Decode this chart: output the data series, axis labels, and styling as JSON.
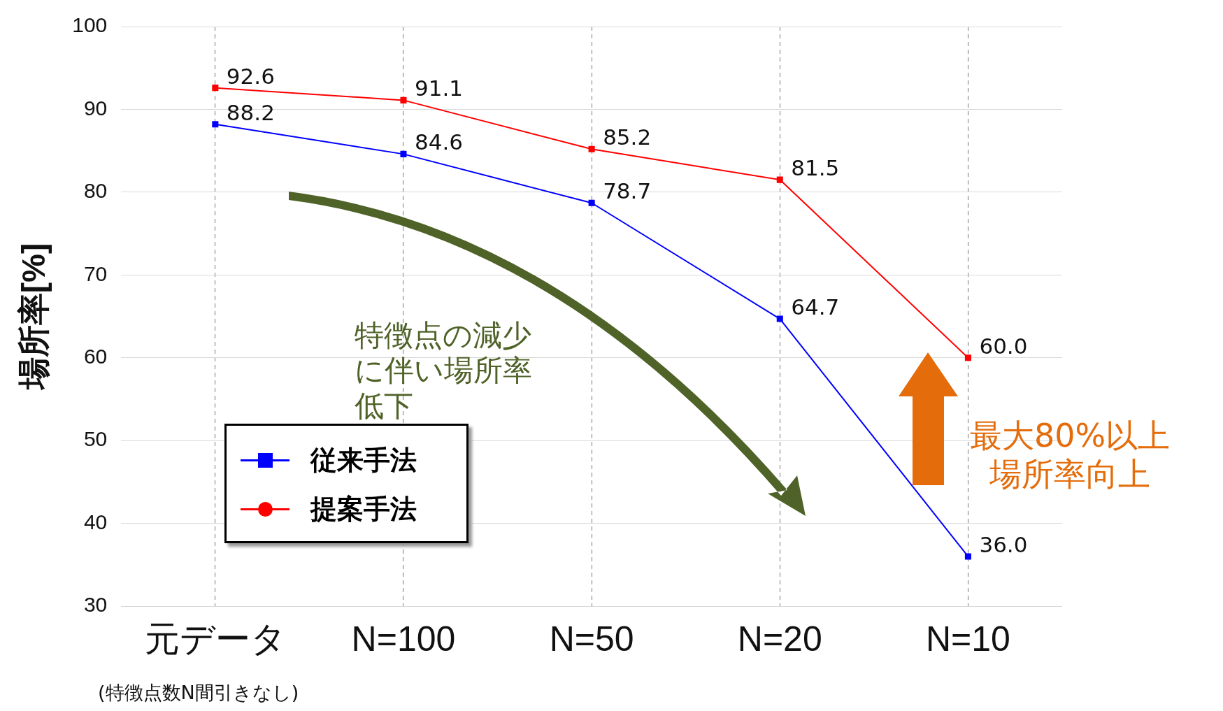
{
  "chart_data": {
    "type": "line",
    "ylabel": "場所率[%]",
    "categories": [
      "元データ",
      "N=100",
      "N=50",
      "N=20",
      "N=10"
    ],
    "series": [
      {
        "name": "従来手法",
        "color": "#0000ff",
        "values": [
          88.2,
          84.6,
          78.7,
          64.7,
          36.0
        ],
        "value_labels": [
          "88.2",
          "84.6",
          "78.7",
          "64.7",
          "36.0"
        ]
      },
      {
        "name": "提案手法",
        "color": "#ff0000",
        "values": [
          92.6,
          91.1,
          85.2,
          81.5,
          60.0
        ],
        "value_labels": [
          "92.6",
          "91.1",
          "85.2",
          "81.5",
          "60.0"
        ]
      }
    ],
    "ylim": [
      30,
      100
    ],
    "yticks": [
      30,
      40,
      50,
      60,
      70,
      80,
      90,
      100
    ],
    "grid": true,
    "legend": "bottom left",
    "marker": "square",
    "annotations": [
      "(特徴点数N間引きなし)",
      "特徴点の減少に伴い場所率低下",
      "最大80%以上場所率向上"
    ]
  }
}
